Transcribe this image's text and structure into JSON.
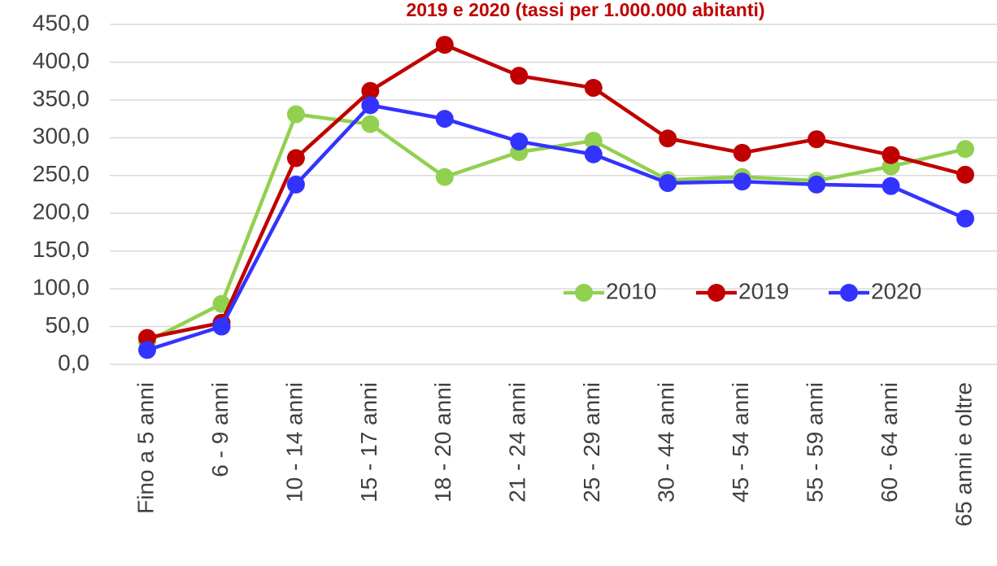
{
  "chart_data": {
    "type": "line",
    "title": "2019 e 2020 (tassi per 1.000.000 abitanti)",
    "categories": [
      "Fino a 5 anni",
      "6 - 9 anni",
      "10 - 14 anni",
      "15 - 17 anni",
      "18 - 20 anni",
      "21 - 24 anni",
      "25 - 29 anni",
      "30 - 44 anni",
      "45 - 54 anni",
      "55 - 59 anni",
      "60 - 64 anni",
      "65 anni e oltre"
    ],
    "series": [
      {
        "name": "2010",
        "color": "#92d050",
        "values": [
          30,
          80,
          331,
          318,
          248,
          281,
          296,
          244,
          248,
          243,
          262,
          285
        ]
      },
      {
        "name": "2019",
        "color": "#c00000",
        "values": [
          35,
          55,
          273,
          362,
          423,
          382,
          366,
          299,
          280,
          298,
          277,
          251
        ]
      },
      {
        "name": "2020",
        "color": "#3333ff",
        "values": [
          19,
          50,
          238,
          343,
          325,
          295,
          278,
          240,
          242,
          238,
          236,
          193
        ]
      }
    ],
    "ylim": [
      0,
      450
    ],
    "yticks": [
      {
        "value": 0,
        "label": "0,0"
      },
      {
        "value": 50,
        "label": "50,0"
      },
      {
        "value": 100,
        "label": "100,0"
      },
      {
        "value": 150,
        "label": "150,0"
      },
      {
        "value": 200,
        "label": "200,0"
      },
      {
        "value": 250,
        "label": "250,0"
      },
      {
        "value": 300,
        "label": "300,0"
      },
      {
        "value": 350,
        "label": "350,0"
      },
      {
        "value": 400,
        "label": "400,0"
      },
      {
        "value": 450,
        "label": "450,0"
      }
    ],
    "grid": true,
    "legend": "inside-right"
  }
}
